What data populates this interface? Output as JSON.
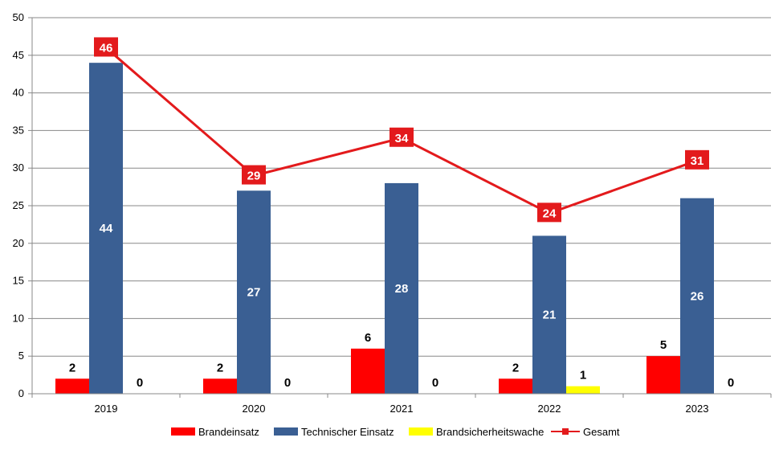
{
  "chart_data": {
    "type": "bar",
    "categories": [
      "2019",
      "2020",
      "2021",
      "2022",
      "2023"
    ],
    "ylim": [
      0,
      50
    ],
    "yticks": [
      0,
      5,
      10,
      15,
      20,
      25,
      30,
      35,
      40,
      45,
      50
    ],
    "grid": true,
    "legend_position": "bottom",
    "series": [
      {
        "name": "Brandeinsatz",
        "type": "bar",
        "color": "#ff0000",
        "values": [
          2,
          2,
          6,
          2,
          5
        ]
      },
      {
        "name": "Technischer Einsatz",
        "type": "bar",
        "color": "#3a5f93",
        "values": [
          44,
          27,
          28,
          21,
          26
        ]
      },
      {
        "name": "Brandsicherheitswache",
        "type": "bar",
        "color": "#ffff00",
        "values": [
          0,
          0,
          0,
          1,
          0
        ]
      },
      {
        "name": "Gesamt",
        "type": "line",
        "color": "#e31a1c",
        "values": [
          46,
          29,
          34,
          24,
          31
        ]
      }
    ]
  }
}
